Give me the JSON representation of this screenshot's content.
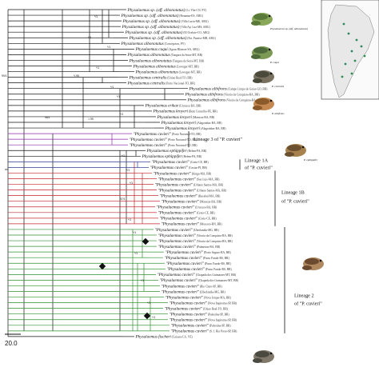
{
  "scale_bar": {
    "label": "20.0"
  },
  "colors": {
    "branch_default": "#111111",
    "lineage3": "#8b28a8",
    "lineage1A": "#2a3a9a",
    "lineage1B": "#c0242b",
    "lineage2": "#2f8f2f",
    "map_land": "#e8e8e8",
    "map_points": "#2e8b57"
  },
  "lineage_labels": [
    {
      "id": "lineage3",
      "text": "Lineage 3 of \"P. cuvieri\""
    },
    {
      "id": "lineage1A",
      "line1": "Lineage 1A",
      "line2": "of \"P. cuvieri\""
    },
    {
      "id": "lineage1B",
      "line1": "Lineage 1B",
      "line2": "of \"P. cuvieri\""
    },
    {
      "id": "lineage2",
      "line1": "Lineage 2",
      "line2": "of \"P. cuvieri\""
    }
  ],
  "frog_captions": [
    "Physalaemus sp. (aff. albonotatus)",
    "P. cuqui",
    "P. centralis",
    "P. albifrons",
    "P. ephippifer"
  ],
  "support_values": [
    "*/1",
    "*/1",
    "*/1",
    "*/1",
    "*/.99",
    "*/1",
    "*/1",
    "*/1",
    "-/.95",
    "98/1",
    "*/1",
    "*/1",
    "*/1",
    "97/1",
    "*/1",
    "*/1",
    "*/1",
    "*/1",
    "*/1",
    "*/1"
  ],
  "clade_support_top": "99/1",
  "tips": [
    {
      "name": "Physalaemus sp. (aff. albonotatus)",
      "loc": "(Lt. Yba-CN, PY)",
      "c": "d"
    },
    {
      "name": "Physalaemus sp. (aff. albonotatus)",
      "loc": "(Bonanza-ES, ARG)",
      "c": "d"
    },
    {
      "name": "Physalaemus sp. (aff. albonotatus)",
      "loc": "(Villa Lucia-ME, ARG)",
      "c": "d"
    },
    {
      "name": "Physalaemus sp. (aff. albonotatus)",
      "loc": "(Villa Ap. Luz-MS, ARG)",
      "c": "d"
    },
    {
      "name": "Physalaemus sp. (aff. albonotatus)",
      "loc": "(El Ocelote-CO, ARG)",
      "c": "d"
    },
    {
      "name": "Physalaemus sp. (aff. albonotatus)",
      "loc": "(Est. Paraiso-MB, ARG)",
      "c": "d"
    },
    {
      "name": "Physalaemus albonotatus",
      "loc": "(Concepcion, PY)",
      "c": "d"
    },
    {
      "name": "Physalaemus cuqui",
      "loc": "(Aguas Blancas-SA, ARG)",
      "c": "d"
    },
    {
      "name": "Physalaemus albonotatus",
      "loc": "(Tangara da Serra-MT, BR)",
      "c": "d"
    },
    {
      "name": "Physalaemus albonotatus",
      "loc": "(Tangara da Serra-MT, BR)",
      "c": "d"
    },
    {
      "name": "Physalaemus albonotatus",
      "loc": "(Leverger-MT, BR)",
      "c": "d"
    },
    {
      "name": "Physalaemus albonotatus",
      "loc": "(Leverger-MT, BR)",
      "c": "d"
    },
    {
      "name": "Physalaemus centralis",
      "loc": "(Uniao Real-TO, BR)",
      "c": "d"
    },
    {
      "name": "Physalaemus centralis",
      "loc": "(Porto Nacional-TO, BR)",
      "c": "d"
    },
    {
      "name": "Physalaemus albifrons",
      "loc": "(Campo Limpo de Goias-GO, BR)",
      "c": "d"
    },
    {
      "name": "Physalaemus albifrons",
      "loc": "(Vitoria da Conquista-BA, BR)",
      "c": "d"
    },
    {
      "name": "Physalaemus albifrons",
      "loc": "(Vitoria da Conquista-BA, BR)",
      "c": "d"
    },
    {
      "name": "Physalaemus erikae",
      "loc": "(Urucuca-BA, BR)",
      "c": "d"
    },
    {
      "name": "Physalaemus kroyeri",
      "loc": "(Bom Conselho-PE, BR)",
      "c": "d"
    },
    {
      "name": "Physalaemus kroyeri",
      "loc": "(Maracas-BA, BR)",
      "c": "d"
    },
    {
      "name": "Physalaemus kroyeri",
      "loc": "(Alagoinhas-BA, BR)",
      "c": "d"
    },
    {
      "name": "Physalaemus kroyeri",
      "loc": "(Alagoinhas-BA, BR)",
      "c": "d"
    },
    {
      "name": "\"Physalaemus cuvieri\"",
      "loc": "(Porto Nacional-TO, BR)",
      "c": "p"
    },
    {
      "name": "\"Physalaemus cuvieri\"",
      "loc": "(Porto Nacional-TO, BR)",
      "c": "p"
    },
    {
      "name": "\"Physalaemus cuvieri\"",
      "loc": "(Porto Nacional-TO, BR)",
      "c": "p"
    },
    {
      "name": "Physalaemus ephippifer",
      "loc": "(Belem-PA, BR)",
      "c": "d"
    },
    {
      "name": "Physalaemus ephippifer",
      "loc": "(Belem-PA, BR)",
      "c": "d"
    },
    {
      "name": "\"Physalaemus cuvieri\"",
      "loc": "(Crato-CE, BR)",
      "c": "b"
    },
    {
      "name": "\"Physalaemus cuvieri\"",
      "loc": "(Caxias-PI, BR)",
      "c": "b"
    },
    {
      "name": "\"Physalaemus cuvieri\"",
      "loc": "(Itinga-MA, BR)",
      "c": "r"
    },
    {
      "name": "\"Physalaemus cuvieri\"",
      "loc": "(Sao Luis-MA, BR)",
      "c": "r"
    },
    {
      "name": "\"Physalaemus cuvieri\"",
      "loc": "(Urbano Santos-MA, BR)",
      "c": "r"
    },
    {
      "name": "\"Physalaemus cuvieri\"",
      "loc": "(Urbano Santos-MA, BR)",
      "c": "r"
    },
    {
      "name": "\"Physalaemus cuvieri\"",
      "loc": "(Bacabal-MA, BR)",
      "c": "r"
    },
    {
      "name": "\"Physalaemus cuvieri\"",
      "loc": "(Maracas-BA, BR)",
      "c": "r"
    },
    {
      "name": "\"Physalaemus cuvieri\"",
      "loc": "(Urucuca-BA, BR)",
      "c": "r"
    },
    {
      "name": "\"Physalaemus cuvieri\"",
      "loc": "(Crato-CE, BR)",
      "c": "r"
    },
    {
      "name": "\"Physalaemus cuvieri\"",
      "loc": "(Crato-CE, BR)",
      "c": "r"
    },
    {
      "name": "\"Physalaemus cuvieri\"",
      "loc": "(Mossoro-RN, BR)",
      "c": "r"
    },
    {
      "name": "\"Physalaemus cuvieri\"",
      "loc": "(Uberlandia-MG, BR)",
      "c": "g"
    },
    {
      "name": "\"Physalaemus cuvieri\"",
      "loc": "(Vitoria da Conquista-BA, BR)",
      "c": "g"
    },
    {
      "name": "\"Physalaemus cuvieri\"",
      "loc": "(Vitoria da Conquista-BA, BR)",
      "c": "g"
    },
    {
      "name": "\"Physalaemus cuvieri\"",
      "loc": "(Palmeiras-BA, BR)",
      "c": "g"
    },
    {
      "name": "\"Physalaemus cuvieri\"",
      "loc": "(Porto Seguro-BA, BR)",
      "c": "g"
    },
    {
      "name": "\"Physalaemus cuvieri\"",
      "loc": "(Passo Fundo-RS, BR)",
      "c": "g"
    },
    {
      "name": "\"Physalaemus cuvieri\"",
      "loc": "(Passo Fundo-RS, BR)",
      "c": "g"
    },
    {
      "name": "\"Physalaemus cuvieri\"",
      "loc": "(Passo Fundo-RS, BR)",
      "c": "g"
    },
    {
      "name": "\"Physalaemus cuvieri\"",
      "loc": "(Chapada dos Guimaraes-MT, BR)",
      "c": "g"
    },
    {
      "name": "\"Physalaemus cuvieri\"",
      "loc": "(Chapada dos Guimaraes-MT, BR)",
      "c": "g"
    },
    {
      "name": "\"Physalaemus cuvieri\"",
      "loc": "(Rio Claro-SP, BR)",
      "c": "g"
    },
    {
      "name": "\"Physalaemus cuvieri\"",
      "loc": "(Uberlandia-MG, BR)",
      "c": "g"
    },
    {
      "name": "\"Physalaemus cuvieri\"",
      "loc": "(Nova Iorque-MA, BR)",
      "c": "g"
    },
    {
      "name": "\"Physalaemus cuvieri\"",
      "loc": "(Nova Itapirema-SP, BR)",
      "c": "g"
    },
    {
      "name": "\"Physalaemus cuvieri\"",
      "loc": "(Uniao Real-TO, BR)",
      "c": "g"
    },
    {
      "name": "\"Physalaemus cuvieri\"",
      "loc": "(Palestina-SP, BR)",
      "c": "g"
    },
    {
      "name": "\"Physalaemus cuvieri\"",
      "loc": "(Nova Itapirema-SP, BR)",
      "c": "g"
    },
    {
      "name": "\"Physalaemus cuvieri\"",
      "loc": "(Palestina-SP, BR)",
      "c": "g"
    },
    {
      "name": "\"Physalaemus cuvieri\"",
      "loc": "(S. J. Rio Preto-SP, BR)",
      "c": "g"
    },
    {
      "name": "Physalaemus fischeri",
      "loc": "(Caicara-CA, VE)",
      "c": "d"
    }
  ]
}
